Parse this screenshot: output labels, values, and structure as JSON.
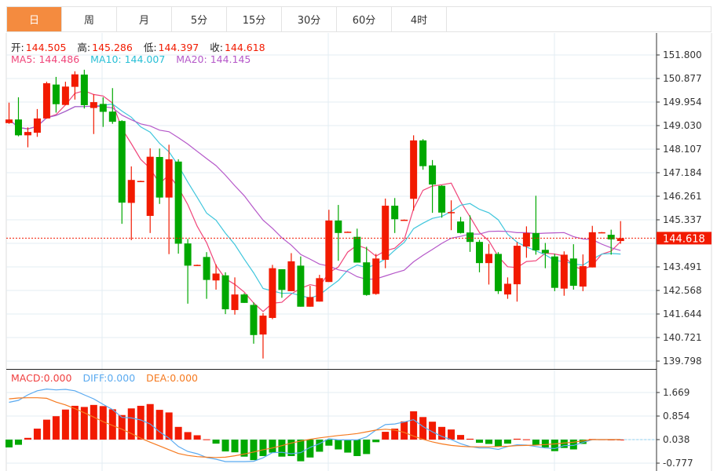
{
  "tabs": [
    "日",
    "周",
    "月",
    "5分",
    "15分",
    "30分",
    "60分",
    "4时"
  ],
  "active_tab": 0,
  "ohlc_info": {
    "open_label": "开:",
    "open": "144.505",
    "high_label": "高:",
    "high": "145.286",
    "low_label": "低:",
    "low": "144.397",
    "close_label": "收:",
    "close": "144.618"
  },
  "ma_info": {
    "ma5": "MA5: 144.486",
    "ma10": "MA10: 144.007",
    "ma20": "MA20: 144.145"
  },
  "macd_info": {
    "macd": "MACD:0.000",
    "diff": "DIFF:0.000",
    "dea": "DEA:0.000"
  },
  "current_price": "144.618",
  "colors": {
    "up": "#f21a00",
    "down": "#00a800",
    "ma5": "#f0457a",
    "ma10": "#3fc6dc",
    "ma20": "#b558c9",
    "diff": "#5aaaf0",
    "dea": "#f57a20",
    "active_tab": "#f48b3f"
  },
  "chart_data": [
    {
      "type": "candlestick",
      "title": "",
      "y_ticks": [
        "151.800",
        "150.877",
        "149.954",
        "149.030",
        "148.107",
        "147.184",
        "146.261",
        "145.337",
        "144.414",
        "143.491",
        "142.568",
        "141.644",
        "140.721",
        "139.798"
      ],
      "ylim": [
        139.798,
        151.8
      ],
      "candles": [
        [
          149.13,
          149.93,
          149.1,
          149.27
        ],
        [
          149.27,
          150.14,
          148.61,
          148.65
        ],
        [
          148.65,
          148.96,
          148.18,
          148.78
        ],
        [
          148.75,
          149.68,
          148.59,
          149.31
        ],
        [
          149.31,
          150.75,
          149.3,
          150.69
        ],
        [
          150.64,
          150.94,
          149.54,
          149.87
        ],
        [
          149.84,
          150.75,
          149.83,
          150.56
        ],
        [
          150.55,
          151.16,
          150.05,
          151.04
        ],
        [
          151.03,
          151.22,
          149.7,
          149.83
        ],
        [
          149.72,
          150.26,
          148.7,
          149.95
        ],
        [
          149.88,
          150.14,
          148.98,
          149.57
        ],
        [
          149.58,
          150.5,
          149.1,
          149.18
        ],
        [
          149.21,
          149.24,
          145.18,
          146.01
        ],
        [
          146.0,
          147.43,
          144.54,
          146.9
        ],
        [
          146.85,
          146.87,
          146.84,
          146.86
        ],
        [
          145.49,
          148.14,
          144.82,
          147.81
        ],
        [
          147.8,
          148.13,
          145.96,
          146.21
        ],
        [
          146.21,
          148.28,
          143.99,
          147.71
        ],
        [
          147.62,
          147.71,
          144.01,
          144.4
        ],
        [
          144.41,
          144.59,
          142.05,
          143.54
        ],
        [
          143.56,
          143.58,
          143.55,
          143.57
        ],
        [
          143.88,
          144.07,
          142.24,
          142.98
        ],
        [
          142.96,
          143.59,
          142.6,
          143.23
        ],
        [
          143.16,
          143.28,
          141.64,
          141.83
        ],
        [
          141.8,
          143.08,
          141.62,
          142.41
        ],
        [
          142.41,
          142.46,
          142.08,
          142.08
        ],
        [
          142.0,
          142.1,
          140.48,
          140.82
        ],
        [
          140.84,
          141.68,
          139.9,
          141.58
        ],
        [
          141.49,
          143.57,
          141.44,
          143.44
        ],
        [
          143.4,
          143.4,
          142.28,
          142.59
        ],
        [
          142.54,
          144.03,
          142.54,
          143.71
        ],
        [
          143.54,
          143.9,
          141.93,
          141.93
        ],
        [
          141.93,
          142.75,
          141.93,
          142.31
        ],
        [
          142.13,
          143.18,
          142.13,
          143.05
        ],
        [
          142.9,
          145.73,
          142.9,
          145.31
        ],
        [
          145.31,
          145.92,
          143.73,
          144.82
        ],
        [
          144.86,
          144.88,
          144.85,
          144.87
        ],
        [
          144.67,
          144.99,
          143.66,
          143.66
        ],
        [
          143.67,
          144.28,
          142.36,
          142.39
        ],
        [
          142.43,
          144.0,
          142.4,
          143.82
        ],
        [
          143.77,
          146.17,
          143.44,
          145.89
        ],
        [
          145.89,
          146.19,
          144.82,
          145.36
        ],
        [
          145.33,
          145.35,
          145.32,
          145.34
        ],
        [
          146.16,
          148.65,
          145.7,
          148.45
        ],
        [
          148.45,
          148.5,
          147.3,
          147.44
        ],
        [
          147.47,
          147.68,
          145.61,
          146.72
        ],
        [
          146.67,
          146.69,
          145.42,
          145.62
        ],
        [
          145.6,
          146.1,
          144.93,
          145.64
        ],
        [
          145.27,
          145.45,
          144.8,
          144.82
        ],
        [
          144.84,
          145.51,
          144.08,
          144.47
        ],
        [
          144.47,
          144.55,
          143.28,
          143.64
        ],
        [
          143.64,
          144.39,
          142.8,
          144.0
        ],
        [
          144.0,
          144.07,
          142.43,
          142.54
        ],
        [
          142.41,
          143.08,
          142.24,
          142.83
        ],
        [
          142.81,
          144.46,
          142.13,
          144.32
        ],
        [
          144.29,
          145.08,
          143.85,
          144.82
        ],
        [
          144.82,
          146.28,
          143.97,
          144.14
        ],
        [
          144.16,
          144.43,
          143.44,
          144.03
        ],
        [
          143.9,
          144.0,
          142.54,
          142.67
        ],
        [
          142.64,
          144.1,
          142.36,
          143.97
        ],
        [
          143.82,
          144.38,
          142.6,
          142.75
        ],
        [
          142.72,
          143.98,
          142.54,
          143.52
        ],
        [
          143.47,
          145.1,
          143.47,
          144.85
        ],
        [
          144.84,
          144.86,
          144.83,
          144.85
        ],
        [
          144.75,
          144.95,
          143.97,
          144.57
        ],
        [
          144.505,
          145.286,
          144.397,
          144.618
        ]
      ],
      "candle_format": [
        "open",
        "high",
        "low",
        "close"
      ],
      "series": [
        "MA5",
        "MA10",
        "MA20"
      ]
    },
    {
      "type": "bar",
      "title": "MACD",
      "y_ticks": [
        "1.669",
        "0.854",
        "0.038",
        "-0.777"
      ],
      "macd": [
        -0.27,
        -0.18,
        0.06,
        0.38,
        0.69,
        0.81,
        1.04,
        1.17,
        1.13,
        1.2,
        1.16,
        1.05,
        0.85,
        1.08,
        1.17,
        1.23,
        1.03,
        0.94,
        0.44,
        0.26,
        0.15,
        0.01,
        -0.14,
        -0.41,
        -0.44,
        -0.59,
        -0.71,
        -0.57,
        -0.45,
        -0.59,
        -0.57,
        -0.75,
        -0.62,
        -0.42,
        -0.21,
        -0.34,
        -0.45,
        -0.57,
        -0.5,
        -0.09,
        0.27,
        0.38,
        0.63,
        0.98,
        0.78,
        0.62,
        0.44,
        0.35,
        0.16,
        0.03,
        -0.11,
        -0.15,
        -0.24,
        -0.14,
        0.03,
        0.01,
        -0.18,
        -0.27,
        -0.4,
        -0.29,
        -0.34,
        -0.15,
        0.02,
        0.01,
        0.0,
        0.0
      ],
      "diff": [
        1.29,
        1.36,
        1.55,
        1.69,
        1.75,
        1.72,
        1.74,
        1.69,
        1.55,
        1.41,
        1.22,
        1.04,
        0.77,
        0.75,
        0.68,
        0.54,
        0.27,
        0.05,
        -0.24,
        -0.41,
        -0.49,
        -0.62,
        -0.68,
        -0.76,
        -0.76,
        -0.76,
        -0.75,
        -0.63,
        -0.45,
        -0.44,
        -0.49,
        -0.45,
        -0.27,
        -0.14,
        0.03,
        -0.01,
        -0.01,
        -0.01,
        0.09,
        0.33,
        0.52,
        0.54,
        0.61,
        0.69,
        0.45,
        0.27,
        0.11,
        0.0,
        -0.14,
        -0.24,
        -0.29,
        -0.29,
        -0.34,
        -0.24,
        -0.18,
        -0.19,
        -0.24,
        -0.29,
        -0.31,
        -0.21,
        -0.2,
        -0.1,
        0.0,
        0.0,
        0.0,
        0.0
      ],
      "dea": [
        1.41,
        1.44,
        1.45,
        1.45,
        1.43,
        1.3,
        1.2,
        1.07,
        0.93,
        0.78,
        0.62,
        0.49,
        0.36,
        0.21,
        0.05,
        -0.09,
        -0.22,
        -0.35,
        -0.48,
        -0.55,
        -0.59,
        -0.61,
        -0.62,
        -0.61,
        -0.56,
        -0.5,
        -0.43,
        -0.35,
        -0.29,
        -0.21,
        -0.12,
        -0.05,
        0.01,
        0.06,
        0.1,
        0.14,
        0.17,
        0.21,
        0.27,
        0.33,
        0.36,
        0.33,
        0.25,
        0.12,
        0.01,
        -0.08,
        -0.15,
        -0.2,
        -0.23,
        -0.25,
        -0.25,
        -0.25,
        -0.24,
        -0.23,
        -0.21,
        -0.2,
        -0.19,
        -0.17,
        -0.15,
        -0.12,
        -0.09,
        -0.04,
        0.0,
        0.0,
        0.0,
        0.0
      ]
    }
  ]
}
